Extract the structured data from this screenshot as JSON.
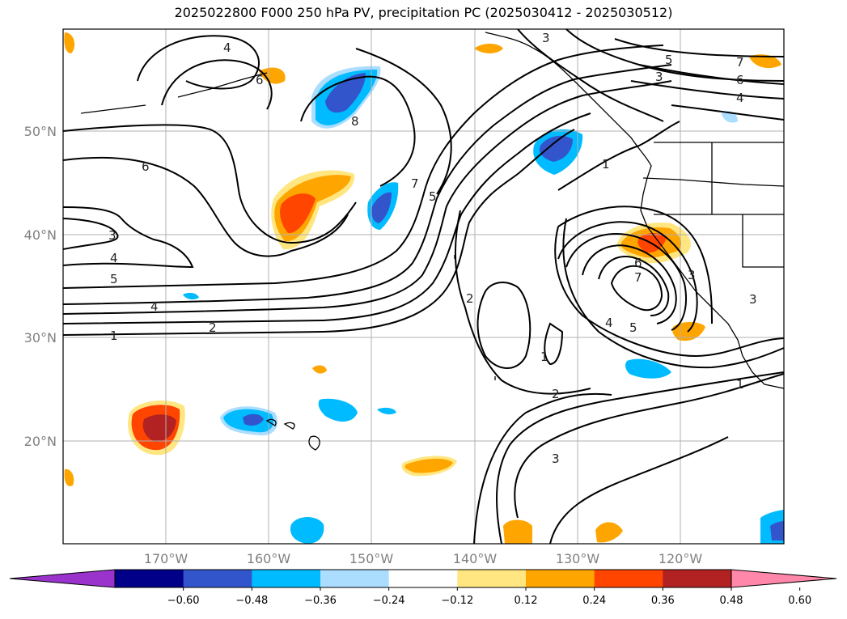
{
  "title": "2025022800 F000 250 hPa PV, precipitation PC (2025030412 - 2025030512)",
  "lon_ticks": [
    "170°W",
    "160°W",
    "150°W",
    "140°W",
    "130°W",
    "120°W"
  ],
  "lat_ticks": [
    "50°N",
    "40°N",
    "30°N",
    "20°N"
  ],
  "colorbar": {
    "ticks": [
      "−0.60",
      "−0.48",
      "−0.36",
      "−0.24",
      "−0.12",
      "0.12",
      "0.24",
      "0.36",
      "0.48",
      "0.60"
    ],
    "colors": [
      "#9933cc",
      "#000088",
      "#3355cc",
      "#00bbff",
      "#aaddff",
      "#ffffff",
      "#ffe680",
      "#ffa500",
      "#ff4500",
      "#b22222",
      "#ff88aa"
    ]
  },
  "contour_labels": [
    "4",
    "6",
    "3",
    "7",
    "5",
    "4",
    "3",
    "6",
    "4",
    "5",
    "3",
    "4",
    "1",
    "2",
    "8",
    "7",
    "5",
    "1",
    "6",
    "7",
    "4",
    "5",
    "3",
    "2",
    "1",
    "2",
    "3",
    "1",
    "3"
  ]
}
